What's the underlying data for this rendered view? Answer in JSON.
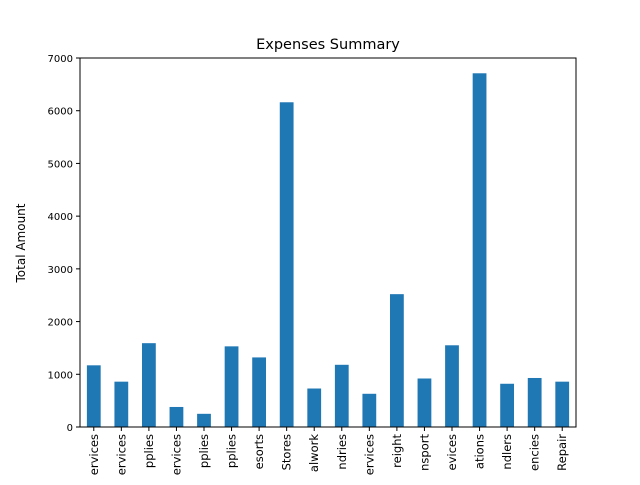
{
  "chart_data": {
    "type": "bar",
    "title": "Expenses Summary",
    "xlabel": "",
    "ylabel": "Total Amount",
    "ylim": [
      0,
      7000
    ],
    "yticks": [
      0,
      1000,
      2000,
      3000,
      4000,
      5000,
      6000,
      7000
    ],
    "grid": false,
    "bar_color": "#1f77b4",
    "categories": [
      "ervices",
      "ervices",
      "pplies",
      "ervices",
      "pplies",
      "pplies",
      "esorts",
      "Stores",
      "alwork",
      "ndries",
      "ervices",
      "reight",
      "nsport",
      "evices",
      "ations",
      "ndlers",
      "encies",
      "Repair"
    ],
    "values": [
      1170,
      860,
      1590,
      380,
      250,
      1530,
      1320,
      6160,
      730,
      1180,
      630,
      2520,
      920,
      1550,
      6710,
      820,
      930,
      860
    ]
  }
}
